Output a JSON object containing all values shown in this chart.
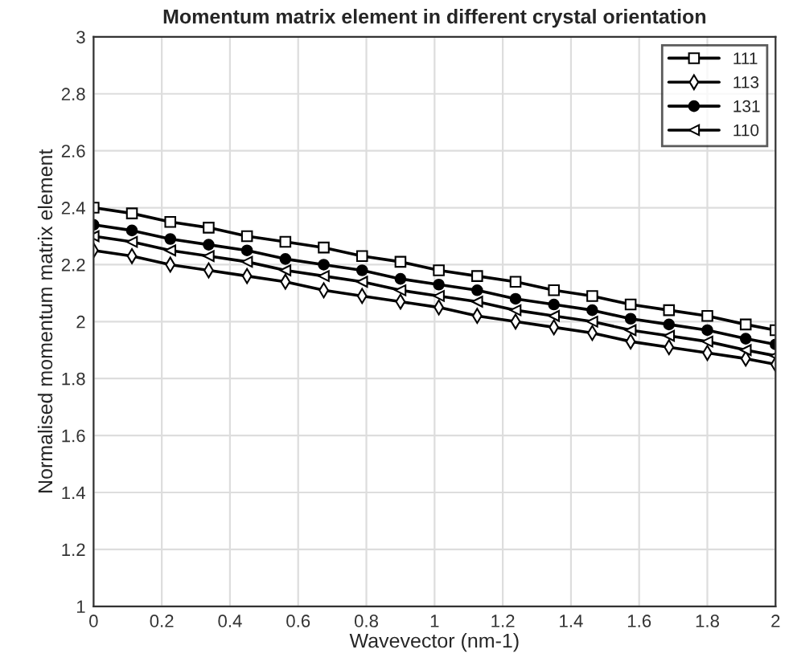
{
  "chart_data": {
    "type": "line",
    "title": "Momentum matrix element in different crystal orientation",
    "xlabel": "Wavevector (nm-1)",
    "ylabel": "Normalised momentum matrix element",
    "x": [
      0,
      0.1125,
      0.225,
      0.3375,
      0.45,
      0.5625,
      0.675,
      0.7875,
      0.9,
      1.0125,
      1.125,
      1.2375,
      1.35,
      1.4625,
      1.575,
      1.6875,
      1.8,
      1.9125,
      2
    ],
    "series": [
      {
        "name": "111",
        "color": "#000000",
        "marker": "square",
        "values": [
          2.4,
          2.38,
          2.35,
          2.33,
          2.3,
          2.28,
          2.26,
          2.23,
          2.21,
          2.18,
          2.16,
          2.14,
          2.11,
          2.09,
          2.06,
          2.04,
          2.02,
          1.99,
          1.97
        ]
      },
      {
        "name": "113",
        "color": "#000000",
        "marker": "diamond",
        "values": [
          2.25,
          2.23,
          2.2,
          2.18,
          2.16,
          2.14,
          2.11,
          2.09,
          2.07,
          2.05,
          2.02,
          2.0,
          1.98,
          1.96,
          1.93,
          1.91,
          1.89,
          1.87,
          1.85
        ]
      },
      {
        "name": "131",
        "color": "#000000",
        "marker": "circle",
        "values": [
          2.34,
          2.32,
          2.29,
          2.27,
          2.25,
          2.22,
          2.2,
          2.18,
          2.15,
          2.13,
          2.11,
          2.08,
          2.06,
          2.04,
          2.01,
          1.99,
          1.97,
          1.94,
          1.92
        ]
      },
      {
        "name": "110",
        "color": "#000000",
        "marker": "triangle",
        "values": [
          2.3,
          2.28,
          2.25,
          2.23,
          2.21,
          2.18,
          2.16,
          2.14,
          2.11,
          2.09,
          2.07,
          2.04,
          2.02,
          2.0,
          1.97,
          1.95,
          1.93,
          1.9,
          1.88
        ]
      }
    ],
    "xlim": [
      0,
      2
    ],
    "xticks": [
      0,
      0.2,
      0.4,
      0.6,
      0.8,
      1,
      1.2,
      1.4,
      1.6,
      1.8,
      2
    ],
    "ylim": [
      1,
      3
    ],
    "yticks": [
      1,
      1.2,
      1.4,
      1.6,
      1.8,
      2,
      2.2,
      2.4,
      2.6,
      2.8,
      3
    ],
    "grid": true,
    "legend": "top right",
    "line_style": "solid"
  }
}
